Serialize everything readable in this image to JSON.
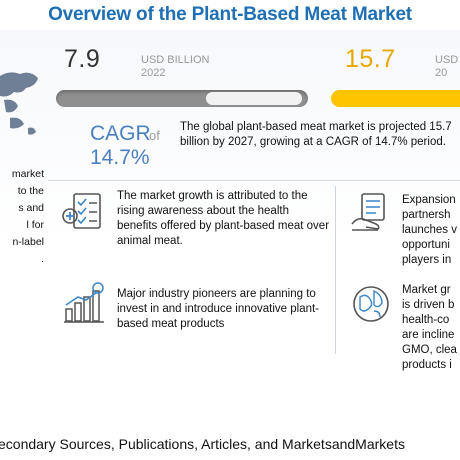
{
  "title": "Overview of the Plant-Based Meat Market",
  "left_snippet": [
    "market",
    "to the",
    "s and",
    "l for",
    "n-label",
    "."
  ],
  "metrics": {
    "start": {
      "value": "7.9",
      "unit": "USD BILLION",
      "year": "2022"
    },
    "end": {
      "value": "15.7",
      "unit": "USD",
      "year": "20"
    }
  },
  "cagr": {
    "label": "CAGR",
    "of": "of",
    "value": "14.7%"
  },
  "summary": "The global plant-based meat market is projected 15.7 billion by 2027, growing at a CAGR of 14.7% period.",
  "points": {
    "p1": "The market growth is attributed to the rising awareness about the health benefits offered by plant-based meat over animal meat.",
    "p2": "Major industry pioneers are planning to invest in and introduce innovative plant-based meat products",
    "p3": [
      "Expansion",
      "partnersh",
      "launches v",
      "opportuni",
      "players in"
    ],
    "p4": [
      "Market gr",
      "is driven b",
      "health-co",
      "are incline",
      "GMO, clea",
      "products i"
    ]
  },
  "icons": {
    "map": "world-map-icon",
    "p1": "health-checklist-icon",
    "p2": "investment-growth-icon",
    "p3": "product-launch-icon",
    "p4": "globe-network-icon"
  },
  "colors": {
    "title": "#1f6fb5",
    "cagr": "#4a7fc0",
    "end_value": "#e8a800",
    "end_bar": "#ffc400",
    "start_bar": "#8f8f8f"
  },
  "source": "econdary Sources, Publications, Articles, and MarketsandMarkets"
}
